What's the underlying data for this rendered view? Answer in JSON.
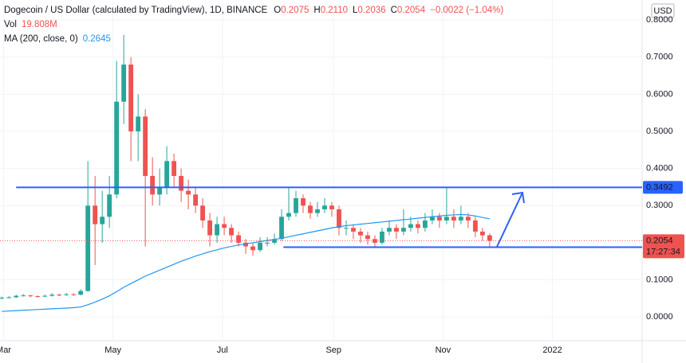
{
  "header": {
    "symbol": "Dogecoin / US Dollar (calculated by TradingView), 1D, BINANCE",
    "ohlc": [
      {
        "key": "O",
        "value": "0.2075"
      },
      {
        "key": "H",
        "value": "0.2110"
      },
      {
        "key": "L",
        "value": "0.2036"
      },
      {
        "key": "C",
        "value": "0.2054"
      }
    ],
    "change": "−0.0022 (−1.04%)",
    "volume_label": "Vol",
    "volume": "19.808M",
    "ma_label": "MA (200, close, 0)",
    "ma_value": "0.2645",
    "currency": "USD"
  },
  "chart_data": {
    "type": "candlestick",
    "x": [
      -1,
      3,
      7,
      11,
      15,
      19,
      23,
      27,
      31,
      35,
      39,
      43,
      47,
      51,
      55,
      59,
      63,
      67,
      71,
      75,
      79,
      83,
      87,
      91,
      95,
      99,
      103,
      107,
      111,
      115,
      119,
      123,
      127,
      131,
      135,
      139,
      143,
      147,
      151,
      155,
      159,
      163,
      167,
      171,
      175,
      179,
      183,
      187,
      191,
      195,
      199,
      203,
      207,
      211,
      215,
      219,
      223,
      227,
      231,
      235,
      239,
      243,
      247,
      251,
      255,
      259,
      263,
      267,
      271
    ],
    "open": [
      0.05,
      0.052,
      0.053,
      0.057,
      0.058,
      0.056,
      0.055,
      0.057,
      0.06,
      0.059,
      0.061,
      0.06,
      0.07,
      0.3,
      0.25,
      0.27,
      0.33,
      0.58,
      0.68,
      0.5,
      0.54,
      0.38,
      0.33,
      0.35,
      0.42,
      0.38,
      0.34,
      0.33,
      0.3,
      0.26,
      0.22,
      0.25,
      0.24,
      0.22,
      0.2,
      0.19,
      0.18,
      0.2,
      0.2,
      0.21,
      0.27,
      0.28,
      0.32,
      0.3,
      0.28,
      0.29,
      0.3,
      0.29,
      0.24,
      0.24,
      0.23,
      0.22,
      0.21,
      0.2,
      0.23,
      0.24,
      0.23,
      0.24,
      0.25,
      0.24,
      0.26,
      0.27,
      0.26,
      0.27,
      0.26,
      0.27,
      0.26,
      0.23,
      0.22
    ],
    "high": [
      0.055,
      0.056,
      0.06,
      0.062,
      0.06,
      0.058,
      0.06,
      0.064,
      0.063,
      0.065,
      0.064,
      0.075,
      0.42,
      0.38,
      0.34,
      0.38,
      0.69,
      0.76,
      0.7,
      0.6,
      0.56,
      0.43,
      0.4,
      0.46,
      0.44,
      0.4,
      0.37,
      0.35,
      0.32,
      0.28,
      0.27,
      0.27,
      0.25,
      0.23,
      0.21,
      0.2,
      0.215,
      0.215,
      0.225,
      0.29,
      0.35,
      0.34,
      0.33,
      0.31,
      0.31,
      0.32,
      0.31,
      0.3,
      0.26,
      0.25,
      0.24,
      0.23,
      0.22,
      0.24,
      0.26,
      0.25,
      0.29,
      0.27,
      0.26,
      0.28,
      0.29,
      0.28,
      0.35,
      0.29,
      0.3,
      0.28,
      0.27,
      0.24,
      0.225
    ],
    "low": [
      0.048,
      0.05,
      0.051,
      0.055,
      0.053,
      0.052,
      0.053,
      0.055,
      0.056,
      0.057,
      0.057,
      0.058,
      0.068,
      0.14,
      0.2,
      0.24,
      0.32,
      0.52,
      0.42,
      0.42,
      0.19,
      0.3,
      0.3,
      0.33,
      0.35,
      0.31,
      0.29,
      0.28,
      0.24,
      0.19,
      0.2,
      0.22,
      0.2,
      0.19,
      0.17,
      0.165,
      0.175,
      0.19,
      0.195,
      0.205,
      0.26,
      0.27,
      0.28,
      0.265,
      0.27,
      0.28,
      0.27,
      0.22,
      0.22,
      0.21,
      0.2,
      0.195,
      0.19,
      0.195,
      0.22,
      0.21,
      0.22,
      0.23,
      0.225,
      0.23,
      0.25,
      0.24,
      0.25,
      0.24,
      0.25,
      0.24,
      0.215,
      0.205,
      0.19
    ],
    "close": [
      0.052,
      0.053,
      0.057,
      0.058,
      0.056,
      0.055,
      0.057,
      0.06,
      0.059,
      0.061,
      0.06,
      0.07,
      0.3,
      0.25,
      0.27,
      0.33,
      0.58,
      0.68,
      0.5,
      0.54,
      0.38,
      0.33,
      0.35,
      0.42,
      0.38,
      0.34,
      0.33,
      0.3,
      0.26,
      0.22,
      0.25,
      0.24,
      0.22,
      0.2,
      0.19,
      0.18,
      0.2,
      0.2,
      0.21,
      0.27,
      0.28,
      0.32,
      0.3,
      0.28,
      0.29,
      0.3,
      0.29,
      0.24,
      0.24,
      0.23,
      0.22,
      0.21,
      0.2,
      0.23,
      0.24,
      0.23,
      0.24,
      0.25,
      0.24,
      0.26,
      0.27,
      0.26,
      0.27,
      0.26,
      0.27,
      0.26,
      0.23,
      0.22,
      0.2054
    ],
    "up_color": "#26a69a",
    "down_color": "#ef5350",
    "ma": {
      "color": "#2196f3",
      "values": [
        0.015,
        0.016,
        0.017,
        0.018,
        0.019,
        0.02,
        0.021,
        0.022,
        0.023,
        0.024,
        0.025,
        0.027,
        0.033,
        0.04,
        0.048,
        0.057,
        0.068,
        0.08,
        0.09,
        0.1,
        0.11,
        0.118,
        0.126,
        0.134,
        0.142,
        0.15,
        0.157,
        0.164,
        0.17,
        0.176,
        0.181,
        0.186,
        0.19,
        0.194,
        0.197,
        0.2,
        0.203,
        0.206,
        0.209,
        0.212,
        0.216,
        0.22,
        0.224,
        0.228,
        0.232,
        0.236,
        0.24,
        0.243,
        0.246,
        0.248,
        0.25,
        0.252,
        0.254,
        0.256,
        0.258,
        0.26,
        0.262,
        0.264,
        0.266,
        0.268,
        0.27,
        0.272,
        0.274,
        0.275,
        0.276,
        0.275,
        0.272,
        0.268,
        0.2645
      ]
    },
    "hlines": [
      {
        "value": 0.3492,
        "from": 7,
        "color": "#2962ff"
      },
      {
        "value": 0.1881,
        "from": 156,
        "color": "#2962ff"
      }
    ],
    "last": {
      "value": 0.2054,
      "countdown": "17:27:34",
      "color": "#ef5350"
    },
    "xlim": [
      -2,
      356
    ],
    "xticks": [
      {
        "value": 0,
        "label": "Mar"
      },
      {
        "value": 61,
        "label": "May"
      },
      {
        "value": 122,
        "label": "Jul"
      },
      {
        "value": 184,
        "label": "Sep"
      },
      {
        "value": 245,
        "label": "Nov"
      },
      {
        "value": 306,
        "label": "2022"
      }
    ],
    "ylim": [
      -0.064,
      0.854
    ],
    "yticks": [
      {
        "value": 0,
        "label": "0.0000"
      },
      {
        "value": 0.1,
        "label": "0.1000"
      },
      {
        "value": 0.2,
        "label": "0.2000"
      },
      {
        "value": 0.3,
        "label": "0.3000"
      },
      {
        "value": 0.4,
        "label": "0.4000"
      },
      {
        "value": 0.5,
        "label": "0.5000"
      },
      {
        "value": 0.6,
        "label": "0.6000"
      },
      {
        "value": 0.7,
        "label": "0.7000"
      },
      {
        "value": 0.8,
        "label": "0.8000"
      }
    ]
  }
}
